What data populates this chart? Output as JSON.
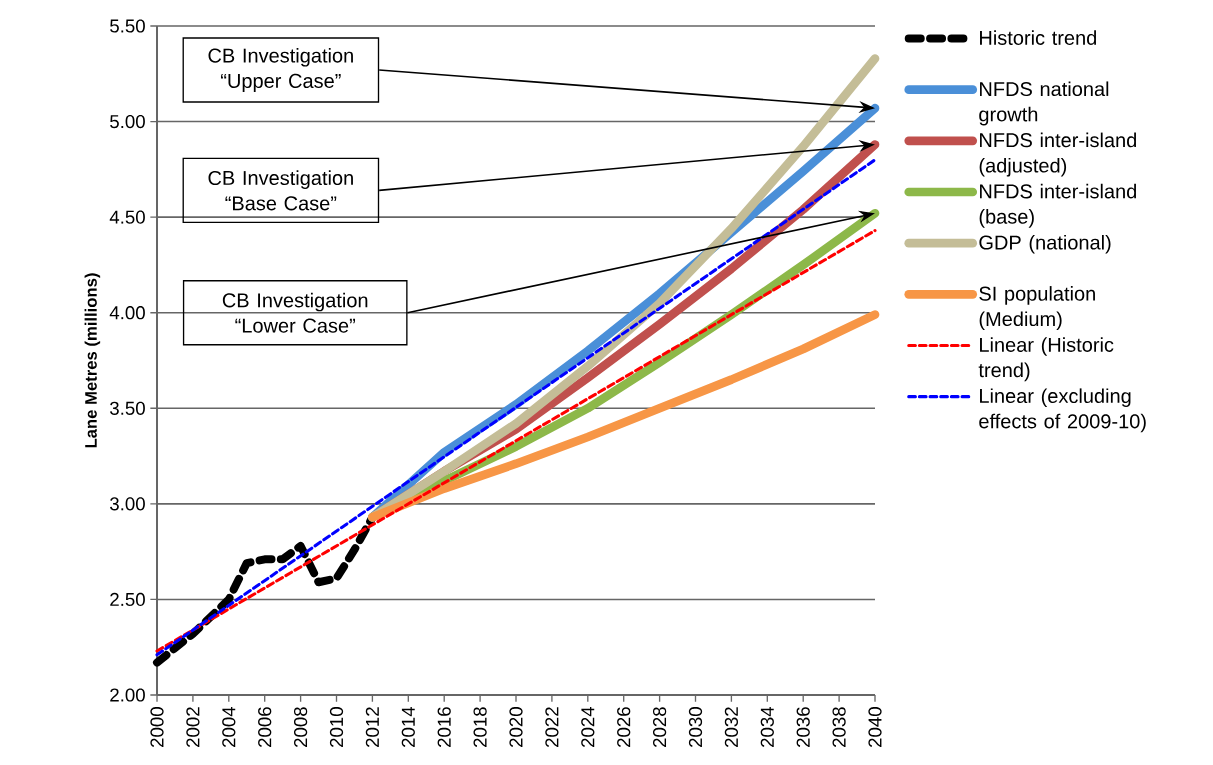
{
  "chart_data": {
    "type": "line",
    "ylabel": "Lane Metres (millions)",
    "xlim": [
      2000,
      2040
    ],
    "xticks": [
      2000,
      2002,
      2004,
      2006,
      2008,
      2010,
      2012,
      2014,
      2016,
      2018,
      2020,
      2022,
      2024,
      2026,
      2028,
      2030,
      2032,
      2034,
      2036,
      2038,
      2040
    ],
    "ylim": [
      2,
      5.5
    ],
    "yticks": [
      {
        "value": 2,
        "label": "2.00"
      },
      {
        "value": 2.5,
        "label": "2.50"
      },
      {
        "value": 3,
        "label": "3.00"
      },
      {
        "value": 3.5,
        "label": "3.50"
      },
      {
        "value": 4,
        "label": "4.00"
      },
      {
        "value": 4.5,
        "label": "4.50"
      },
      {
        "value": 5,
        "label": "5.00"
      },
      {
        "value": 5.5,
        "label": "5.50"
      }
    ],
    "grid": "y",
    "legend": "right",
    "series": [
      {
        "name": "Historic trend",
        "color": "#000000",
        "line_style": "dashed",
        "x": [
          2000,
          2002,
          2004,
          2005,
          2006,
          2007,
          2008,
          2009,
          2010,
          2011,
          2012
        ],
        "values": [
          2.17,
          2.32,
          2.5,
          2.69,
          2.71,
          2.71,
          2.78,
          2.59,
          2.61,
          2.76,
          2.93
        ]
      },
      {
        "name": "NFDS national growth",
        "color": "#4a8fd8",
        "line_style": "solid",
        "x": [
          2012,
          2016,
          2020,
          2024,
          2028,
          2032,
          2036,
          2040
        ],
        "values": [
          2.93,
          3.27,
          3.52,
          3.8,
          4.1,
          4.42,
          4.74,
          5.07
        ]
      },
      {
        "name": "NFDS inter-island (adjusted)",
        "color": "#c0504d",
        "line_style": "solid",
        "x": [
          2012,
          2016,
          2020,
          2024,
          2028,
          2032,
          2036,
          2040
        ],
        "values": [
          2.93,
          3.17,
          3.39,
          3.66,
          3.94,
          4.23,
          4.54,
          4.88
        ]
      },
      {
        "name": "NFDS inter-island (base)",
        "color": "#8db849",
        "line_style": "solid",
        "x": [
          2012,
          2016,
          2020,
          2024,
          2028,
          2032,
          2036,
          2040
        ],
        "values": [
          2.93,
          3.12,
          3.3,
          3.5,
          3.74,
          3.99,
          4.25,
          4.52
        ]
      },
      {
        "name": "GDP (national)",
        "color": "#c4bd97",
        "line_style": "solid",
        "x": [
          2012,
          2016,
          2020,
          2024,
          2028,
          2032,
          2036,
          2040
        ],
        "values": [
          2.93,
          3.17,
          3.42,
          3.72,
          4.05,
          4.44,
          4.87,
          5.33
        ]
      },
      {
        "name": "SI population (Medium)",
        "color": "#f79646",
        "line_style": "solid",
        "x": [
          2012,
          2016,
          2020,
          2024,
          2028,
          2032,
          2036,
          2040
        ],
        "values": [
          2.93,
          3.08,
          3.21,
          3.35,
          3.5,
          3.65,
          3.81,
          3.99
        ]
      },
      {
        "name": "Linear (Historic trend)",
        "color": "#ff0000",
        "line_style": "dashed",
        "x": [
          2000,
          2040
        ],
        "values": [
          2.23,
          4.43
        ]
      },
      {
        "name": "Linear (excluding effects of 2009-10)",
        "color": "#0000ff",
        "line_style": "dashed",
        "x": [
          2000,
          2040
        ],
        "values": [
          2.21,
          4.8
        ]
      }
    ],
    "annotations": [
      "CB Investigation “Upper Case”",
      "CB Investigation “Base Case”",
      "CB Investigation “Lower Case”"
    ]
  }
}
